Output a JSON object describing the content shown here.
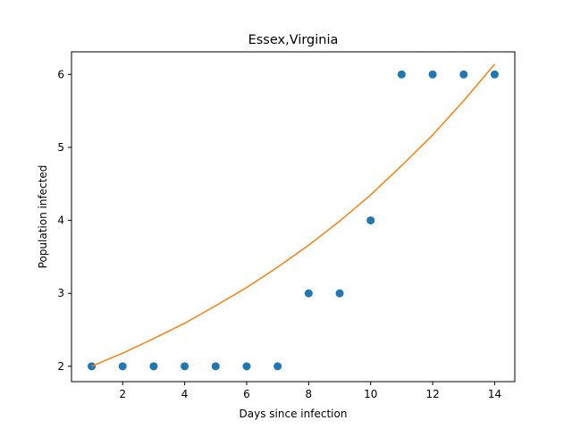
{
  "chart_data": {
    "type": "scatter",
    "title": "Essex,Virginia",
    "xlabel": "Days since infection",
    "ylabel": "Population infected",
    "xlim": [
      0.35,
      14.65
    ],
    "ylim": [
      1.79,
      6.31
    ],
    "xticks": [
      2,
      4,
      6,
      8,
      10,
      12,
      14
    ],
    "yticks": [
      2,
      3,
      4,
      5,
      6
    ],
    "grid": false,
    "colors": {
      "points": "#1f77b4",
      "fit": "#ff7f0e"
    },
    "series": [
      {
        "kind": "scatter",
        "x": [
          1,
          2,
          3,
          4,
          5,
          6,
          7,
          8,
          9,
          10,
          11,
          12,
          13,
          14
        ],
        "y": [
          2,
          2,
          2,
          2,
          2,
          2,
          2,
          3,
          3,
          4,
          6,
          6,
          6,
          6
        ]
      },
      {
        "kind": "line",
        "x": [
          1,
          2,
          3,
          4,
          5,
          6,
          7,
          8,
          9,
          10,
          11,
          12,
          13,
          14
        ],
        "y": [
          2.0,
          2.18,
          2.38,
          2.59,
          2.83,
          3.08,
          3.36,
          3.66,
          3.99,
          4.35,
          4.75,
          5.17,
          5.64,
          6.14
        ]
      }
    ]
  }
}
